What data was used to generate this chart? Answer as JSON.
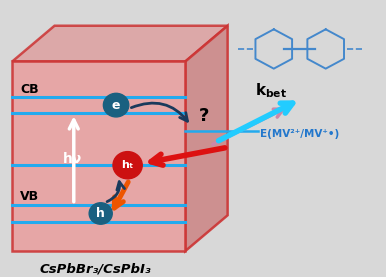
{
  "bg_color": "#d8d8d8",
  "cube_front_color": "#e8a0a0",
  "cube_top_color": "#dda0a0",
  "cube_right_color": "#cc8888",
  "cube_edge_color": "#cc3333",
  "cb_label": "CB",
  "vb_label": "VB",
  "hv_label": "hν",
  "ht_label": "hₜ",
  "h_label": "h",
  "e_label": "e",
  "emv_label": "E(MV²⁺/MV⁺•)",
  "kbet_label": "k",
  "q_label": "?",
  "formula_label": "CsPbBr₃/CsPbI₃",
  "line_color": "#22aaee",
  "arrow_dark": "#1a3a5c",
  "arrow_red": "#dd1111",
  "arrow_orange": "#ee5500",
  "arrow_cyan": "#22ccff",
  "arrow_pink": "#cc88aa",
  "circle_blue": "#1a6080",
  "circle_red": "#cc1111",
  "viologen_color": "#4488cc",
  "emv_color": "#2277cc"
}
